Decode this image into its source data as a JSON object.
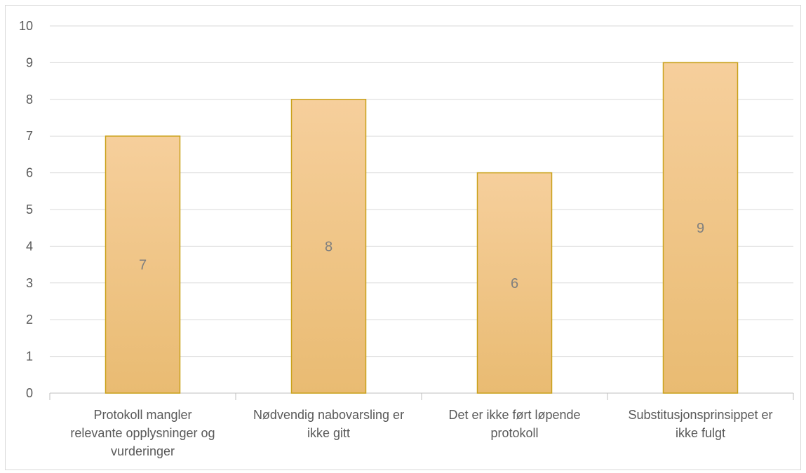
{
  "chart_data": {
    "type": "bar",
    "categories": [
      [
        "Protokoll mangler",
        "relevante opplysninger og",
        "vurderinger"
      ],
      [
        "Nødvendig nabovarsling er",
        "ikke gitt"
      ],
      [
        "Det er ikke ført løpende",
        "protokoll"
      ],
      [
        "Substitusjonsprinsippet er",
        "ikke fulgt"
      ]
    ],
    "values": [
      7,
      8,
      6,
      9
    ],
    "data_labels": [
      "7",
      "8",
      "6",
      "9"
    ],
    "ylim": [
      0,
      10
    ],
    "yticks": [
      "0",
      "1",
      "2",
      "3",
      "4",
      "5",
      "6",
      "7",
      "8",
      "9",
      "10"
    ],
    "title": "",
    "xlabel": "",
    "ylabel": "",
    "grid": true,
    "legend": "none",
    "colors": {
      "bar_fill_top": "#f6cf9c",
      "bar_fill_bottom": "#e9bb72",
      "bar_border": "#c9a11a",
      "gridline": "#d9d9d9",
      "axis": "#bfbfbf"
    }
  }
}
